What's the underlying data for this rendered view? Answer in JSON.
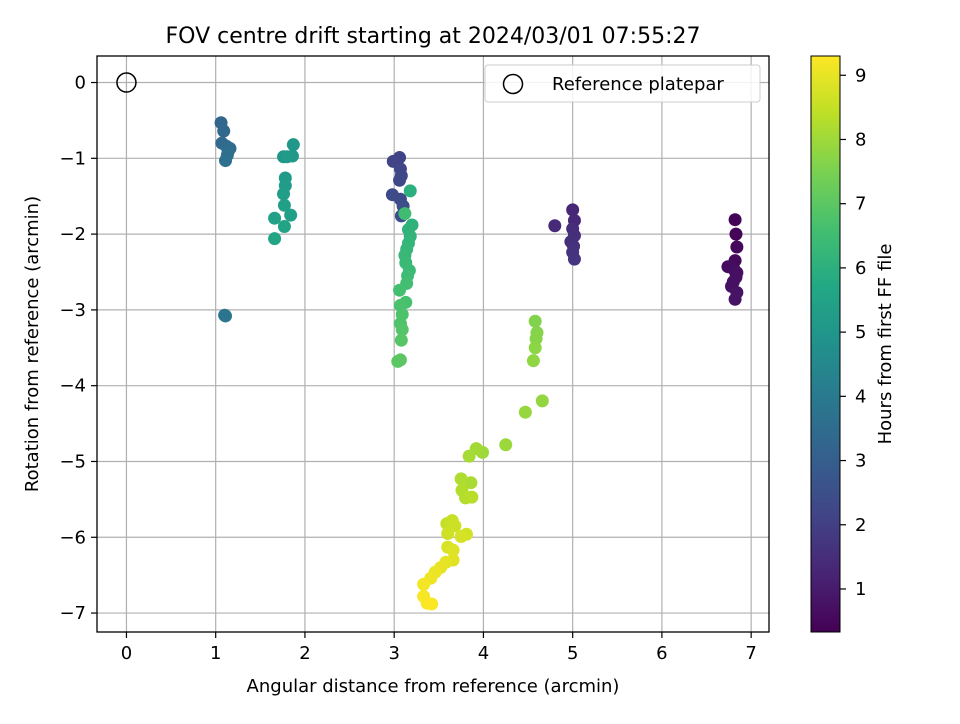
{
  "chart_data": {
    "type": "scatter",
    "title": "FOV centre drift starting at 2024/03/01 07:55:27",
    "xlabel": "Angular distance from reference (arcmin)",
    "ylabel": "Rotation from reference (arcmin)",
    "xlim": [
      -0.33,
      7.2
    ],
    "ylim": [
      -7.25,
      0.35
    ],
    "x_ticks": [
      0,
      1,
      2,
      3,
      4,
      5,
      6,
      7
    ],
    "y_ticks": [
      0,
      -1,
      -2,
      -3,
      -4,
      -5,
      -6,
      -7
    ],
    "grid": true,
    "legend": {
      "position": "top-right",
      "entries": [
        "Reference platepar"
      ]
    },
    "reference_point": {
      "x": 0,
      "y": 0
    },
    "colorbar": {
      "label": "Hours from first FF file",
      "range": [
        0.33,
        9.3
      ],
      "ticks": [
        1,
        2,
        3,
        4,
        5,
        6,
        7,
        8,
        9
      ],
      "colormap": "viridis"
    },
    "points": [
      {
        "x": 6.82,
        "y": -1.81,
        "h": 0.4
      },
      {
        "x": 6.83,
        "y": -2.0,
        "h": 0.45
      },
      {
        "x": 6.84,
        "y": -2.17,
        "h": 0.5
      },
      {
        "x": 6.82,
        "y": -2.35,
        "h": 0.55
      },
      {
        "x": 6.74,
        "y": -2.43,
        "h": 0.6
      },
      {
        "x": 6.77,
        "y": -2.43,
        "h": 0.62
      },
      {
        "x": 6.81,
        "y": -2.47,
        "h": 0.65
      },
      {
        "x": 6.84,
        "y": -2.51,
        "h": 0.68
      },
      {
        "x": 6.83,
        "y": -2.57,
        "h": 0.7
      },
      {
        "x": 6.8,
        "y": -2.63,
        "h": 0.72
      },
      {
        "x": 6.78,
        "y": -2.69,
        "h": 0.75
      },
      {
        "x": 6.84,
        "y": -2.77,
        "h": 0.78
      },
      {
        "x": 6.82,
        "y": -2.86,
        "h": 0.8
      },
      {
        "x": 5.0,
        "y": -1.68,
        "h": 1.3
      },
      {
        "x": 5.02,
        "y": -1.82,
        "h": 1.35
      },
      {
        "x": 4.8,
        "y": -1.89,
        "h": 1.4
      },
      {
        "x": 5.0,
        "y": -1.93,
        "h": 1.45
      },
      {
        "x": 5.02,
        "y": -2.02,
        "h": 1.5
      },
      {
        "x": 4.98,
        "y": -2.1,
        "h": 1.55
      },
      {
        "x": 5.01,
        "y": -2.16,
        "h": 1.6
      },
      {
        "x": 5.0,
        "y": -2.24,
        "h": 1.65
      },
      {
        "x": 5.02,
        "y": -2.33,
        "h": 1.7
      },
      {
        "x": 3.06,
        "y": -0.99,
        "h": 2.1
      },
      {
        "x": 2.99,
        "y": -1.04,
        "h": 2.15
      },
      {
        "x": 3.07,
        "y": -1.14,
        "h": 2.2
      },
      {
        "x": 3.08,
        "y": -1.23,
        "h": 2.25
      },
      {
        "x": 3.06,
        "y": -1.29,
        "h": 2.3
      },
      {
        "x": 2.98,
        "y": -1.48,
        "h": 2.35
      },
      {
        "x": 3.07,
        "y": -1.54,
        "h": 2.4
      },
      {
        "x": 3.1,
        "y": -1.63,
        "h": 2.45
      },
      {
        "x": 3.08,
        "y": -1.76,
        "h": 2.5
      },
      {
        "x": 1.06,
        "y": -0.53,
        "h": 3.3
      },
      {
        "x": 1.09,
        "y": -0.64,
        "h": 3.35
      },
      {
        "x": 1.07,
        "y": -0.8,
        "h": 3.4
      },
      {
        "x": 1.12,
        "y": -0.84,
        "h": 3.45
      },
      {
        "x": 1.16,
        "y": -0.87,
        "h": 3.5
      },
      {
        "x": 1.14,
        "y": -0.91,
        "h": 3.55
      },
      {
        "x": 1.13,
        "y": -0.96,
        "h": 3.6
      },
      {
        "x": 1.11,
        "y": -1.03,
        "h": 3.65
      },
      {
        "x": 1.1,
        "y": -3.07,
        "h": 3.8
      },
      {
        "x": 1.11,
        "y": -3.08,
        "h": 3.85
      },
      {
        "x": 1.76,
        "y": -0.98,
        "h": 5.0
      },
      {
        "x": 1.87,
        "y": -0.82,
        "h": 5.05
      },
      {
        "x": 1.86,
        "y": -0.97,
        "h": 5.1
      },
      {
        "x": 1.8,
        "y": -0.98,
        "h": 5.15
      },
      {
        "x": 1.78,
        "y": -1.26,
        "h": 5.2
      },
      {
        "x": 1.78,
        "y": -1.36,
        "h": 5.25
      },
      {
        "x": 1.76,
        "y": -1.47,
        "h": 5.3
      },
      {
        "x": 1.77,
        "y": -1.62,
        "h": 5.35
      },
      {
        "x": 1.84,
        "y": -1.75,
        "h": 5.4
      },
      {
        "x": 1.66,
        "y": -1.79,
        "h": 5.45
      },
      {
        "x": 1.77,
        "y": -1.9,
        "h": 5.5
      },
      {
        "x": 1.66,
        "y": -2.06,
        "h": 5.55
      },
      {
        "x": 3.18,
        "y": -1.43,
        "h": 6.0
      },
      {
        "x": 3.2,
        "y": -1.88,
        "h": 6.05
      },
      {
        "x": 3.16,
        "y": -1.94,
        "h": 6.1
      },
      {
        "x": 3.18,
        "y": -2.03,
        "h": 6.15
      },
      {
        "x": 3.16,
        "y": -2.12,
        "h": 6.2
      },
      {
        "x": 3.14,
        "y": -2.2,
        "h": 6.25
      },
      {
        "x": 3.12,
        "y": -2.28,
        "h": 6.3
      },
      {
        "x": 3.13,
        "y": -2.38,
        "h": 6.35
      },
      {
        "x": 3.17,
        "y": -2.48,
        "h": 6.4
      },
      {
        "x": 3.15,
        "y": -2.55,
        "h": 6.45
      },
      {
        "x": 3.12,
        "y": -1.73,
        "h": 6.5
      },
      {
        "x": 3.14,
        "y": -2.65,
        "h": 6.55
      },
      {
        "x": 3.06,
        "y": -2.74,
        "h": 6.6
      },
      {
        "x": 3.13,
        "y": -2.9,
        "h": 6.65
      },
      {
        "x": 3.07,
        "y": -2.94,
        "h": 6.7
      },
      {
        "x": 3.09,
        "y": -3.06,
        "h": 6.75
      },
      {
        "x": 3.07,
        "y": -3.18,
        "h": 6.8
      },
      {
        "x": 3.09,
        "y": -3.26,
        "h": 6.85
      },
      {
        "x": 3.08,
        "y": -3.4,
        "h": 6.9
      },
      {
        "x": 3.07,
        "y": -3.66,
        "h": 6.95
      },
      {
        "x": 3.04,
        "y": -3.68,
        "h": 7.0
      },
      {
        "x": 4.58,
        "y": -3.15,
        "h": 7.6
      },
      {
        "x": 4.6,
        "y": -3.3,
        "h": 7.65
      },
      {
        "x": 4.59,
        "y": -3.38,
        "h": 7.7
      },
      {
        "x": 4.58,
        "y": -3.5,
        "h": 7.75
      },
      {
        "x": 4.56,
        "y": -3.67,
        "h": 7.8
      },
      {
        "x": 4.66,
        "y": -4.2,
        "h": 7.85
      },
      {
        "x": 4.47,
        "y": -4.35,
        "h": 7.9
      },
      {
        "x": 4.25,
        "y": -4.78,
        "h": 7.95
      },
      {
        "x": 3.99,
        "y": -4.88,
        "h": 8.0
      },
      {
        "x": 3.92,
        "y": -4.83,
        "h": 8.05
      },
      {
        "x": 3.84,
        "y": -4.93,
        "h": 8.1
      },
      {
        "x": 3.86,
        "y": -5.28,
        "h": 8.15
      },
      {
        "x": 3.75,
        "y": -5.23,
        "h": 8.2
      },
      {
        "x": 3.76,
        "y": -5.38,
        "h": 8.25
      },
      {
        "x": 3.8,
        "y": -5.48,
        "h": 8.3
      },
      {
        "x": 3.87,
        "y": -5.47,
        "h": 8.35
      },
      {
        "x": 3.59,
        "y": -5.82,
        "h": 8.5
      },
      {
        "x": 3.65,
        "y": -5.78,
        "h": 8.55
      },
      {
        "x": 3.68,
        "y": -5.85,
        "h": 8.6
      },
      {
        "x": 3.6,
        "y": -5.95,
        "h": 8.65
      },
      {
        "x": 3.81,
        "y": -5.96,
        "h": 8.7
      },
      {
        "x": 3.75,
        "y": -5.99,
        "h": 8.75
      },
      {
        "x": 3.6,
        "y": -6.13,
        "h": 8.8
      },
      {
        "x": 3.66,
        "y": -6.17,
        "h": 8.85
      },
      {
        "x": 3.66,
        "y": -6.3,
        "h": 8.9
      },
      {
        "x": 3.58,
        "y": -6.33,
        "h": 8.95
      },
      {
        "x": 3.52,
        "y": -6.4,
        "h": 9.0
      },
      {
        "x": 3.46,
        "y": -6.46,
        "h": 9.05
      },
      {
        "x": 3.41,
        "y": -6.54,
        "h": 9.1
      },
      {
        "x": 3.33,
        "y": -6.62,
        "h": 9.15
      },
      {
        "x": 3.33,
        "y": -6.78,
        "h": 9.2
      },
      {
        "x": 3.37,
        "y": -6.87,
        "h": 9.25
      },
      {
        "x": 3.42,
        "y": -6.88,
        "h": 9.28
      }
    ]
  }
}
